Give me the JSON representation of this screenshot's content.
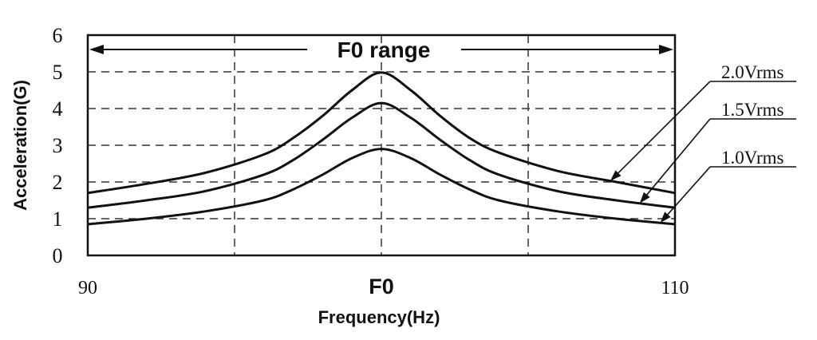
{
  "chart_data": {
    "type": "line",
    "title": "",
    "xlabel": "Frequency(Hz)",
    "ylabel": "Acceleration(G)",
    "xlim": [
      90,
      110
    ],
    "ylim": [
      0,
      6
    ],
    "x_ticks": [
      {
        "value": 90,
        "label": "90"
      },
      {
        "value": 100,
        "label": "F0"
      },
      {
        "value": 110,
        "label": "110"
      }
    ],
    "y_ticks": [
      "0",
      "1",
      "2",
      "3",
      "4",
      "5",
      "6"
    ],
    "grid": true,
    "range_annotation": {
      "label": "F0 range",
      "from": 90,
      "to": 110
    },
    "x": [
      90,
      92,
      94,
      96,
      97,
      98,
      99,
      100,
      101,
      102,
      103,
      104,
      106,
      108,
      110
    ],
    "series": [
      {
        "name": "2.0Vrms",
        "values": [
          1.7,
          1.95,
          2.25,
          2.75,
          3.2,
          3.8,
          4.5,
          4.98,
          4.5,
          3.8,
          3.2,
          2.8,
          2.3,
          2.0,
          1.7
        ]
      },
      {
        "name": "1.5Vrms",
        "values": [
          1.3,
          1.5,
          1.75,
          2.2,
          2.6,
          3.15,
          3.75,
          4.15,
          3.75,
          3.15,
          2.6,
          2.2,
          1.75,
          1.5,
          1.3
        ]
      },
      {
        "name": "1.0Vrms",
        "values": [
          0.85,
          1.0,
          1.2,
          1.5,
          1.8,
          2.2,
          2.65,
          2.9,
          2.65,
          2.2,
          1.8,
          1.5,
          1.2,
          1.0,
          0.85
        ]
      }
    ]
  }
}
